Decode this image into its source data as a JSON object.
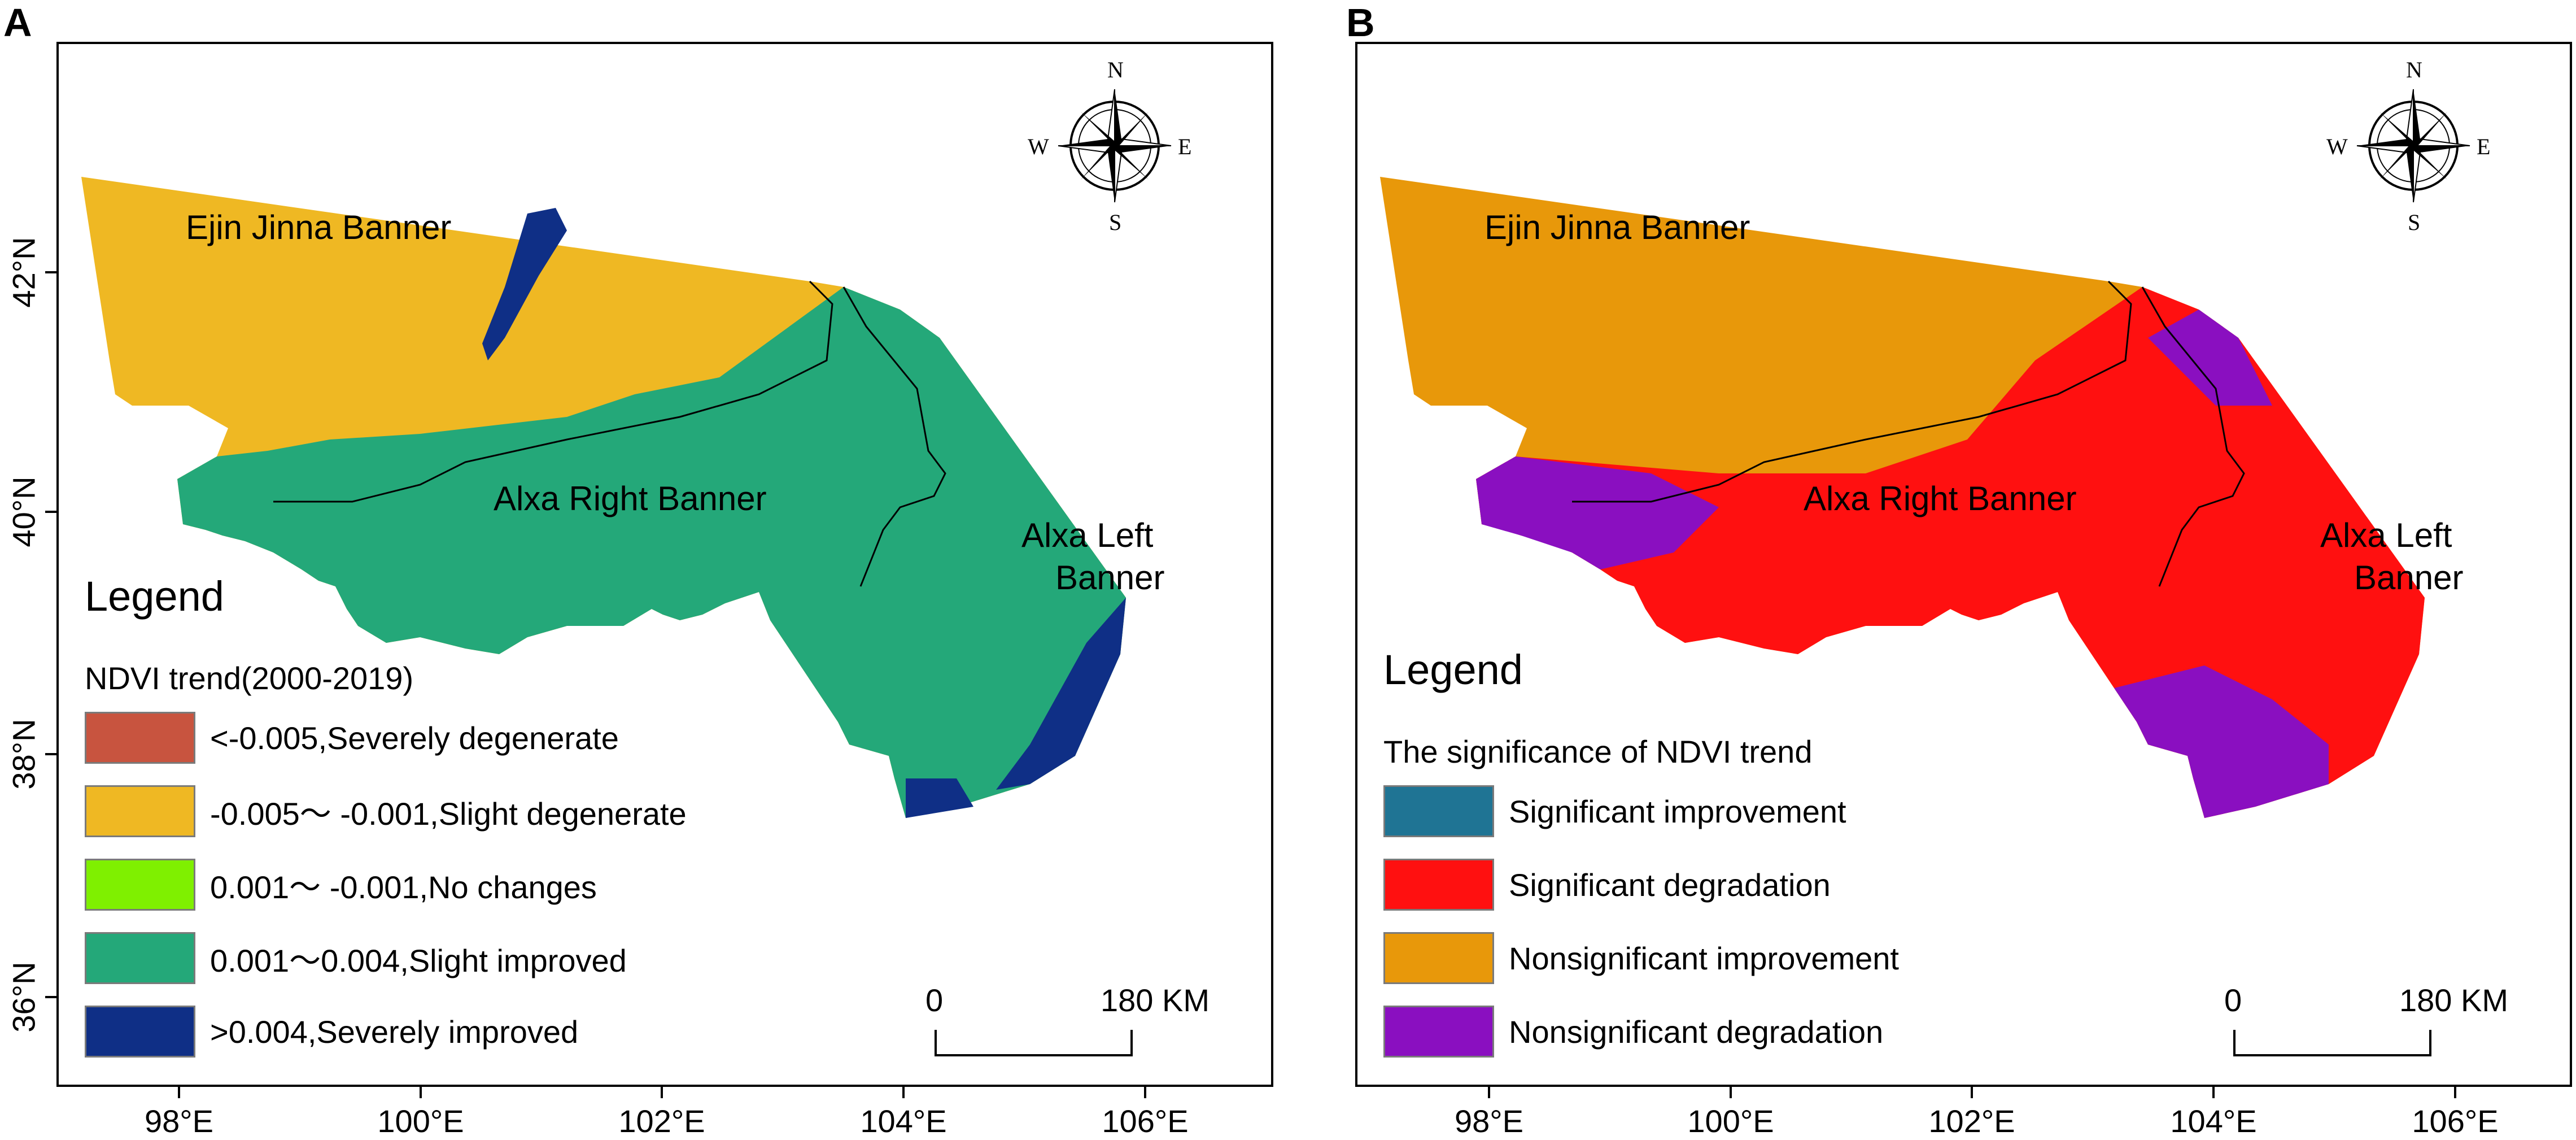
{
  "panels": [
    {
      "letter": "A",
      "regions": {
        "ejin": "Ejin Jinna Banner",
        "right": "Alxa Right Banner",
        "left_line1": "Alxa Left",
        "left_line2": "Banner"
      },
      "legend": {
        "title": "Legend",
        "subtitle": "NDVI trend(2000-2019)",
        "items": [
          {
            "label": "<-0.005,Severely degenerate",
            "color": "#c8543f"
          },
          {
            "label": "-0.005～ -0.001,Slight degenerate",
            "color": "#efb823"
          },
          {
            "label": "0.001～ -0.001,No changes",
            "color": "#7ff000"
          },
          {
            "label": "0.001～0.004,Slight improved",
            "color": "#24a879"
          },
          {
            "label": ">0.004,Severely improved",
            "color": "#0f2f86"
          }
        ]
      },
      "map_colors": {
        "base_west": "#efb823",
        "base_east": "#24a879",
        "accent": "#0f2f86"
      }
    },
    {
      "letter": "B",
      "regions": {
        "ejin": "Ejin Jinna Banner",
        "right": "Alxa Right Banner",
        "left_line1": "Alxa Left",
        "left_line2": "Banner"
      },
      "legend": {
        "title": "Legend",
        "subtitle": "The significance of NDVI trend",
        "items": [
          {
            "label": "Significant improvement",
            "color": "#1f7494"
          },
          {
            "label": "Significant degradation",
            "color": "#ff1010"
          },
          {
            "label": "Nonsignificant improvement",
            "color": "#e8980a"
          },
          {
            "label": "Nonsignificant degradation",
            "color": "#8a0fc0"
          }
        ]
      },
      "map_colors": {
        "base_west": "#e8980a",
        "base_east": "#ff1010",
        "accent": "#8a0fc0"
      }
    }
  ],
  "axes": {
    "x_ticks": [
      "98°E",
      "100°E",
      "102°E",
      "104°E",
      "106°E"
    ],
    "y_ticks": [
      "42°N",
      "40°N",
      "38°N",
      "36°N"
    ]
  },
  "scale_bar": {
    "start": "0",
    "end": "180 KM"
  },
  "compass": {
    "n": "N",
    "s": "S",
    "e": "E",
    "w": "W"
  }
}
